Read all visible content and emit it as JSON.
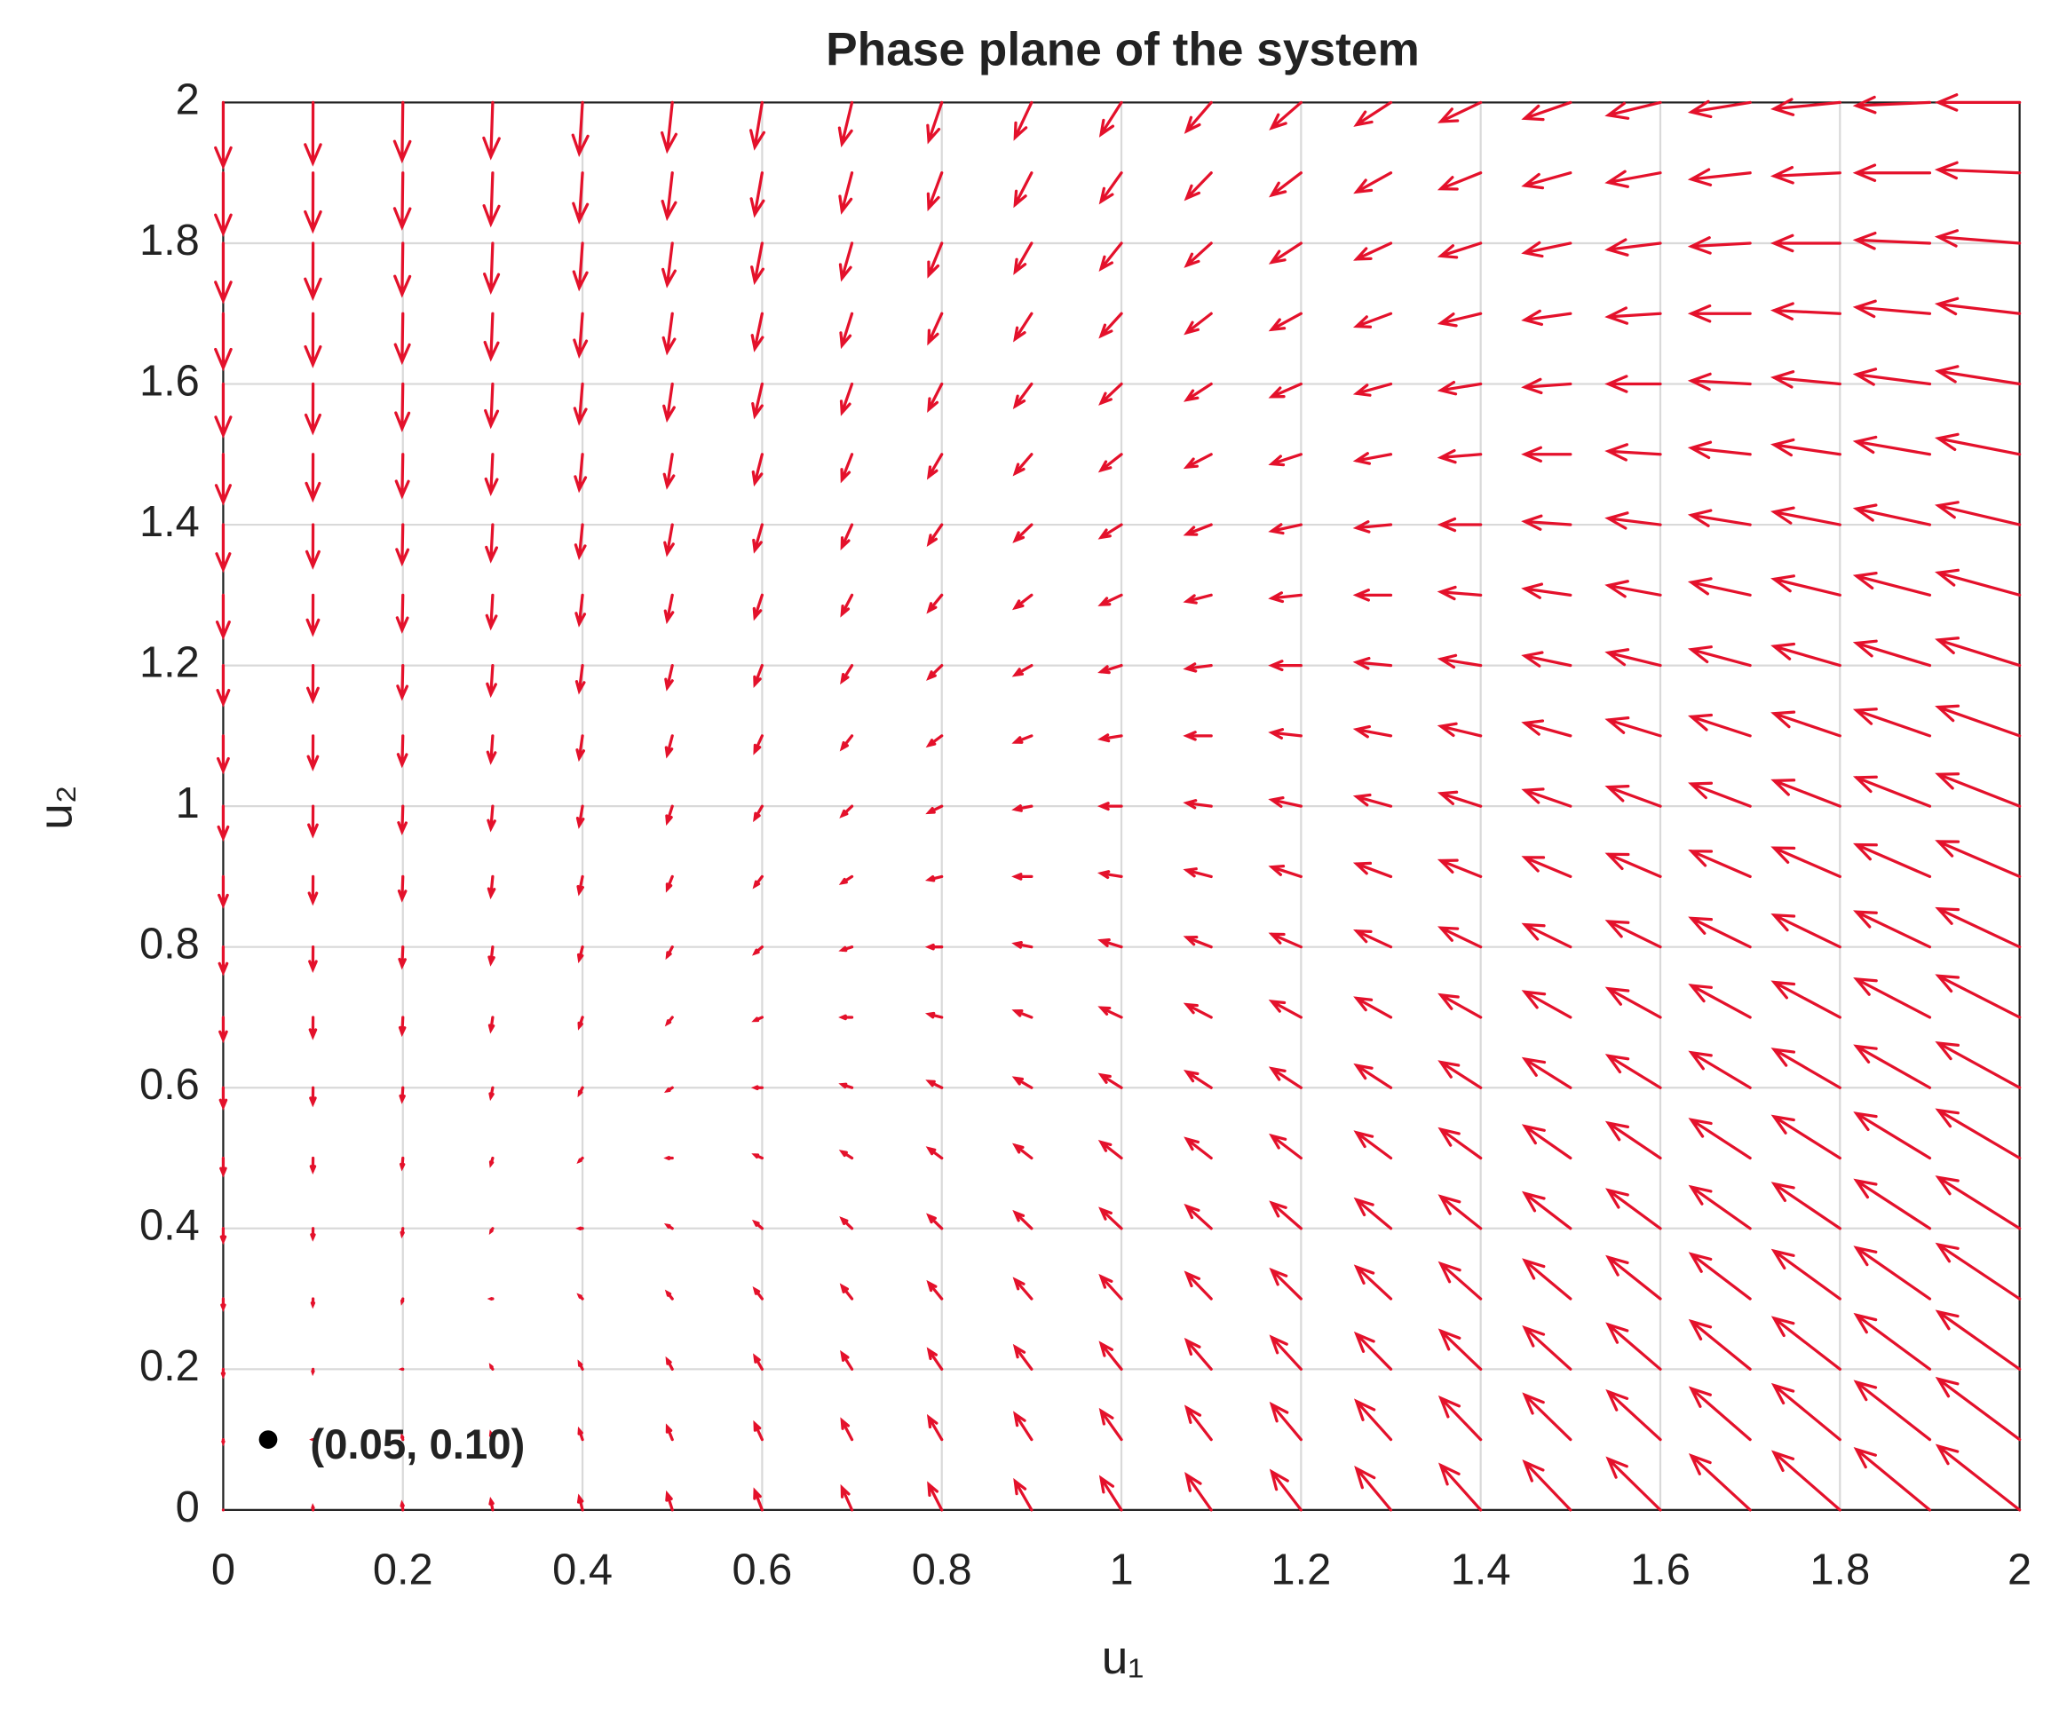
{
  "chart_data": {
    "type": "quiver",
    "title": "Phase plane of the system",
    "xlabel": "u₁",
    "ylabel": "u₂",
    "color": "#e4112b",
    "grid": true,
    "xlim": [
      0,
      2
    ],
    "ylim": [
      0,
      2
    ],
    "xticks": [
      0,
      0.2,
      0.4,
      0.6,
      0.8,
      1,
      1.2,
      1.4,
      1.6,
      1.8,
      2
    ],
    "yticks": [
      0,
      0.2,
      0.4,
      0.6,
      0.8,
      1,
      1.2,
      1.4,
      1.6,
      1.8,
      2
    ],
    "x": [
      0,
      0.1,
      0.2,
      0.3,
      0.4,
      0.5,
      0.6,
      0.7,
      0.8,
      0.9,
      1,
      1.1,
      1.2,
      1.3,
      1.4,
      1.5,
      1.6,
      1.7,
      1.8,
      1.9,
      2
    ],
    "y": [
      0,
      0.1,
      0.2,
      0.3,
      0.4,
      0.5,
      0.6,
      0.7,
      0.8,
      0.9,
      1,
      1.1,
      1.2,
      1.3,
      1.4,
      1.5,
      1.6,
      1.7,
      1.8,
      1.9,
      2
    ],
    "u": [
      [
        0,
        -0.01,
        -0.04,
        -0.09,
        -0.16,
        -0.25,
        -0.36,
        -0.49,
        -0.64,
        -0.81,
        -1,
        -1.21,
        -1.44,
        -1.69,
        -1.96,
        -2.25,
        -2.56,
        -2.89,
        -3.24,
        -3.61,
        -4
      ],
      [
        0,
        -0.01,
        -0.04,
        -0.09,
        -0.16,
        -0.25,
        -0.36,
        -0.49,
        -0.64,
        -0.81,
        -1,
        -1.21,
        -1.44,
        -1.69,
        -1.96,
        -2.25,
        -2.56,
        -2.89,
        -3.24,
        -3.61,
        -4
      ],
      [
        0,
        -0.01,
        -0.04,
        -0.09,
        -0.16,
        -0.25,
        -0.36,
        -0.49,
        -0.64,
        -0.81,
        -1,
        -1.21,
        -1.44,
        -1.69,
        -1.96,
        -2.25,
        -2.56,
        -2.89,
        -3.24,
        -3.61,
        -4
      ],
      [
        0,
        -0.01,
        -0.04,
        -0.09,
        -0.16,
        -0.25,
        -0.36,
        -0.49,
        -0.64,
        -0.81,
        -1,
        -1.21,
        -1.44,
        -1.69,
        -1.96,
        -2.25,
        -2.56,
        -2.89,
        -3.24,
        -3.61,
        -4
      ],
      [
        0,
        -0.01,
        -0.04,
        -0.09,
        -0.16,
        -0.25,
        -0.36,
        -0.49,
        -0.64,
        -0.81,
        -1,
        -1.21,
        -1.44,
        -1.69,
        -1.96,
        -2.25,
        -2.56,
        -2.89,
        -3.24,
        -3.61,
        -4
      ],
      [
        0,
        -0.01,
        -0.04,
        -0.09,
        -0.16,
        -0.25,
        -0.36,
        -0.49,
        -0.64,
        -0.81,
        -1,
        -1.21,
        -1.44,
        -1.69,
        -1.96,
        -2.25,
        -2.56,
        -2.89,
        -3.24,
        -3.61,
        -4
      ],
      [
        0,
        -0.01,
        -0.04,
        -0.09,
        -0.16,
        -0.25,
        -0.36,
        -0.49,
        -0.64,
        -0.81,
        -1,
        -1.21,
        -1.44,
        -1.69,
        -1.96,
        -2.25,
        -2.56,
        -2.89,
        -3.24,
        -3.61,
        -4
      ],
      [
        0,
        -0.01,
        -0.04,
        -0.09,
        -0.16,
        -0.25,
        -0.36,
        -0.49,
        -0.64,
        -0.81,
        -1,
        -1.21,
        -1.44,
        -1.69,
        -1.96,
        -2.25,
        -2.56,
        -2.89,
        -3.24,
        -3.61,
        -4
      ],
      [
        0,
        -0.01,
        -0.04,
        -0.09,
        -0.16,
        -0.25,
        -0.36,
        -0.49,
        -0.64,
        -0.81,
        -1,
        -1.21,
        -1.44,
        -1.69,
        -1.96,
        -2.25,
        -2.56,
        -2.89,
        -3.24,
        -3.61,
        -4
      ],
      [
        0,
        -0.01,
        -0.04,
        -0.09,
        -0.16,
        -0.25,
        -0.36,
        -0.49,
        -0.64,
        -0.81,
        -1,
        -1.21,
        -1.44,
        -1.69,
        -1.96,
        -2.25,
        -2.56,
        -2.89,
        -3.24,
        -3.61,
        -4
      ],
      [
        0,
        -0.01,
        -0.04,
        -0.09,
        -0.16,
        -0.25,
        -0.36,
        -0.49,
        -0.64,
        -0.81,
        -1,
        -1.21,
        -1.44,
        -1.69,
        -1.96,
        -2.25,
        -2.56,
        -2.89,
        -3.24,
        -3.61,
        -4
      ],
      [
        0,
        -0.01,
        -0.04,
        -0.09,
        -0.16,
        -0.25,
        -0.36,
        -0.49,
        -0.64,
        -0.81,
        -1,
        -1.21,
        -1.44,
        -1.69,
        -1.96,
        -2.25,
        -2.56,
        -2.89,
        -3.24,
        -3.61,
        -4
      ],
      [
        0,
        -0.01,
        -0.04,
        -0.09,
        -0.16,
        -0.25,
        -0.36,
        -0.49,
        -0.64,
        -0.81,
        -1,
        -1.21,
        -1.44,
        -1.69,
        -1.96,
        -2.25,
        -2.56,
        -2.89,
        -3.24,
        -3.61,
        -4
      ],
      [
        0,
        -0.01,
        -0.04,
        -0.09,
        -0.16,
        -0.25,
        -0.36,
        -0.49,
        -0.64,
        -0.81,
        -1,
        -1.21,
        -1.44,
        -1.69,
        -1.96,
        -2.25,
        -2.56,
        -2.89,
        -3.24,
        -3.61,
        -4
      ],
      [
        0,
        -0.01,
        -0.04,
        -0.09,
        -0.16,
        -0.25,
        -0.36,
        -0.49,
        -0.64,
        -0.81,
        -1,
        -1.21,
        -1.44,
        -1.69,
        -1.96,
        -2.25,
        -2.56,
        -2.89,
        -3.24,
        -3.61,
        -4
      ],
      [
        0,
        -0.01,
        -0.04,
        -0.09,
        -0.16,
        -0.25,
        -0.36,
        -0.49,
        -0.64,
        -0.81,
        -1,
        -1.21,
        -1.44,
        -1.69,
        -1.96,
        -2.25,
        -2.56,
        -2.89,
        -3.24,
        -3.61,
        -4
      ],
      [
        0,
        -0.01,
        -0.04,
        -0.09,
        -0.16,
        -0.25,
        -0.36,
        -0.49,
        -0.64,
        -0.81,
        -1,
        -1.21,
        -1.44,
        -1.69,
        -1.96,
        -2.25,
        -2.56,
        -2.89,
        -3.24,
        -3.61,
        -4
      ],
      [
        0,
        -0.01,
        -0.04,
        -0.09,
        -0.16,
        -0.25,
        -0.36,
        -0.49,
        -0.64,
        -0.81,
        -1,
        -1.21,
        -1.44,
        -1.69,
        -1.96,
        -2.25,
        -2.56,
        -2.89,
        -3.24,
        -3.61,
        -4
      ],
      [
        0,
        -0.01,
        -0.04,
        -0.09,
        -0.16,
        -0.25,
        -0.36,
        -0.49,
        -0.64,
        -0.81,
        -1,
        -1.21,
        -1.44,
        -1.69,
        -1.96,
        -2.25,
        -2.56,
        -2.89,
        -3.24,
        -3.61,
        -4
      ],
      [
        0,
        -0.01,
        -0.04,
        -0.09,
        -0.16,
        -0.25,
        -0.36,
        -0.49,
        -0.64,
        -0.81,
        -1,
        -1.21,
        -1.44,
        -1.69,
        -1.96,
        -2.25,
        -2.56,
        -2.89,
        -3.24,
        -3.61,
        -4
      ],
      [
        0,
        -0.01,
        -0.04,
        -0.09,
        -0.16,
        -0.25,
        -0.36,
        -0.49,
        -0.64,
        -0.81,
        -1,
        -1.21,
        -1.44,
        -1.69,
        -1.96,
        -2.25,
        -2.56,
        -2.89,
        -3.24,
        -3.61,
        -4
      ]
    ],
    "v": [
      [
        0,
        0.2,
        0.4,
        0.6,
        0.8,
        1,
        1.2,
        1.4,
        1.6,
        1.8,
        2,
        2.2,
        2.4,
        2.6,
        2.8,
        3,
        3.2,
        3.4,
        3.6,
        3.8,
        4
      ],
      [
        -0.2,
        0,
        0.2,
        0.4,
        0.6,
        0.8,
        1,
        1.2,
        1.4,
        1.6,
        1.8,
        2,
        2.2,
        2.4,
        2.6,
        2.8,
        3,
        3.2,
        3.4,
        3.6,
        3.8
      ],
      [
        -0.4,
        -0.2,
        0,
        0.2,
        0.4,
        0.6,
        0.8,
        1,
        1.2,
        1.4,
        1.6,
        1.8,
        2,
        2.2,
        2.4,
        2.6,
        2.8,
        3,
        3.2,
        3.4,
        3.6
      ],
      [
        -0.6,
        -0.4,
        -0.2,
        0,
        0.2,
        0.4,
        0.6,
        0.8,
        1,
        1.2,
        1.4,
        1.6,
        1.8,
        2,
        2.2,
        2.4,
        2.6,
        2.8,
        3,
        3.2,
        3.4
      ],
      [
        -0.8,
        -0.6,
        -0.4,
        -0.2,
        0,
        0.2,
        0.4,
        0.6,
        0.8,
        1,
        1.2,
        1.4,
        1.6,
        1.8,
        2,
        2.2,
        2.4,
        2.6,
        2.8,
        3,
        3.2
      ],
      [
        -1,
        -0.8,
        -0.6,
        -0.4,
        -0.2,
        0,
        0.2,
        0.4,
        0.6,
        0.8,
        1,
        1.2,
        1.4,
        1.6,
        1.8,
        2,
        2.2,
        2.4,
        2.6,
        2.8,
        3
      ],
      [
        -1.2,
        -1,
        -0.8,
        -0.6,
        -0.4,
        -0.2,
        0,
        0.2,
        0.4,
        0.6,
        0.8,
        1,
        1.2,
        1.4,
        1.6,
        1.8,
        2,
        2.2,
        2.4,
        2.6,
        2.8
      ],
      [
        -1.4,
        -1.2,
        -1,
        -0.8,
        -0.6,
        -0.4,
        -0.2,
        0,
        0.2,
        0.4,
        0.6,
        0.8,
        1,
        1.2,
        1.4,
        1.6,
        1.8,
        2,
        2.2,
        2.4,
        2.6
      ],
      [
        -1.6,
        -1.4,
        -1.2,
        -1,
        -0.8,
        -0.6,
        -0.4,
        -0.2,
        0,
        0.2,
        0.4,
        0.6,
        0.8,
        1,
        1.2,
        1.4,
        1.6,
        1.8,
        2,
        2.2,
        2.4
      ],
      [
        -1.8,
        -1.6,
        -1.4,
        -1.2,
        -1,
        -0.8,
        -0.6,
        -0.4,
        -0.2,
        0,
        0.2,
        0.4,
        0.6,
        0.8,
        1,
        1.2,
        1.4,
        1.6,
        1.8,
        2,
        2.2
      ],
      [
        -2,
        -1.8,
        -1.6,
        -1.4,
        -1.2,
        -1,
        -0.8,
        -0.6,
        -0.4,
        -0.2,
        0,
        0.2,
        0.4,
        0.6,
        0.8,
        1,
        1.2,
        1.4,
        1.6,
        1.8,
        2
      ],
      [
        -2.2,
        -2,
        -1.8,
        -1.6,
        -1.4,
        -1.2,
        -1,
        -0.8,
        -0.6,
        -0.4,
        -0.2,
        0,
        0.2,
        0.4,
        0.6,
        0.8,
        1,
        1.2,
        1.4,
        1.6,
        1.8
      ],
      [
        -2.4,
        -2.2,
        -2,
        -1.8,
        -1.6,
        -1.4,
        -1.2,
        -1,
        -0.8,
        -0.6,
        -0.4,
        -0.2,
        0,
        0.2,
        0.4,
        0.6,
        0.8,
        1,
        1.2,
        1.4,
        1.6
      ],
      [
        -2.6,
        -2.4,
        -2.2,
        -2,
        -1.8,
        -1.6,
        -1.4,
        -1.2,
        -1,
        -0.8,
        -0.6,
        -0.4,
        -0.2,
        0,
        0.2,
        0.4,
        0.6,
        0.8,
        1,
        1.2,
        1.4
      ],
      [
        -2.8,
        -2.6,
        -2.4,
        -2.2,
        -2,
        -1.8,
        -1.6,
        -1.4,
        -1.2,
        -1,
        -0.8,
        -0.6,
        -0.4,
        -0.2,
        0,
        0.2,
        0.4,
        0.6,
        0.8,
        1,
        1.2
      ],
      [
        -3,
        -2.8,
        -2.6,
        -2.4,
        -2.2,
        -2,
        -1.8,
        -1.6,
        -1.4,
        -1.2,
        -1,
        -0.8,
        -0.6,
        -0.4,
        -0.2,
        0,
        0.2,
        0.4,
        0.6,
        0.8,
        1
      ],
      [
        -3.2,
        -3,
        -2.8,
        -2.6,
        -2.4,
        -2.2,
        -2,
        -1.8,
        -1.6,
        -1.4,
        -1.2,
        -1,
        -0.8,
        -0.6,
        -0.4,
        -0.2,
        0,
        0.2,
        0.4,
        0.6,
        0.8
      ],
      [
        -3.4,
        -3.2,
        -3,
        -2.8,
        -2.6,
        -2.4,
        -2.2,
        -2,
        -1.8,
        -1.6,
        -1.4,
        -1.2,
        -1,
        -0.8,
        -0.6,
        -0.4,
        -0.2,
        0,
        0.2,
        0.4,
        0.6
      ],
      [
        -3.6,
        -3.4,
        -3.2,
        -3,
        -2.8,
        -2.6,
        -2.4,
        -2.2,
        -2,
        -1.8,
        -1.6,
        -1.4,
        -1.2,
        -1,
        -0.8,
        -0.6,
        -0.4,
        -0.2,
        0,
        0.2,
        0.4
      ],
      [
        -3.8,
        -3.6,
        -3.4,
        -3.2,
        -3,
        -2.8,
        -2.6,
        -2.4,
        -2.2,
        -2,
        -1.8,
        -1.6,
        -1.4,
        -1.2,
        -1,
        -0.8,
        -0.6,
        -0.4,
        -0.2,
        0,
        0.2
      ],
      [
        -4,
        -3.8,
        -3.6,
        -3.4,
        -3.2,
        -3,
        -2.8,
        -2.6,
        -2.4,
        -2.2,
        -2,
        -1.8,
        -1.6,
        -1.4,
        -1.2,
        -1,
        -0.8,
        -0.6,
        -0.4,
        -0.2,
        0
      ]
    ],
    "point": {
      "x": 0.05,
      "y": 0.1,
      "label": "(0.05, 0.10)",
      "color": "#000000"
    }
  }
}
